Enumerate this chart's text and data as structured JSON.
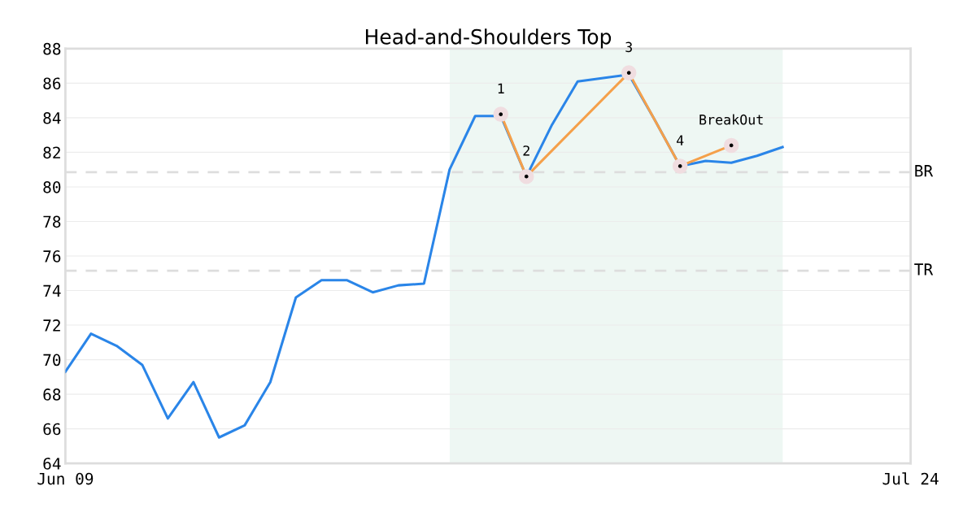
{
  "chart_data": {
    "type": "line",
    "title": "Head-and-Shoulders Top",
    "categories": [
      "Jun 09",
      null,
      null,
      null,
      null,
      null,
      null,
      null,
      null,
      null,
      null,
      null,
      null,
      null,
      null,
      null,
      null,
      null,
      null,
      null,
      null,
      null,
      null,
      null,
      null,
      null,
      null,
      null,
      null,
      null,
      null,
      null,
      null,
      "Jul 24"
    ],
    "series": [
      {
        "color": "#2a85e8",
        "values": [
          69.3,
          71.5,
          70.8,
          69.7,
          66.6,
          68.7,
          65.5,
          66.2,
          68.7,
          73.6,
          74.6,
          74.6,
          73.9,
          74.3,
          74.4,
          81.0,
          84.1,
          84.1,
          80.6,
          83.6,
          86.1,
          86.3,
          86.5,
          83.9,
          81.2,
          81.5,
          81.4,
          81.8,
          82.3,
          null,
          null,
          null,
          null,
          null
        ]
      },
      {
        "color": "#f5a04a",
        "marker": "circle",
        "values": [
          null,
          null,
          null,
          null,
          null,
          null,
          null,
          null,
          null,
          null,
          null,
          null,
          null,
          null,
          null,
          null,
          null,
          84.2,
          80.6,
          null,
          null,
          null,
          86.6,
          null,
          81.2,
          null,
          82.4,
          null,
          null,
          null,
          null,
          null,
          null,
          null
        ]
      }
    ],
    "annotations": [
      "1",
      "2",
      "3",
      "4",
      "BreakOut"
    ],
    "ylim": [
      64,
      88
    ],
    "yticks": [
      64,
      66,
      68,
      70,
      72,
      74,
      76,
      78,
      80,
      82,
      84,
      86,
      88
    ],
    "grid": "y",
    "ref_lines": [
      {
        "axis": "y",
        "value": 80.85,
        "label": "BR",
        "color": "#dddddd",
        "line_style": "dashed"
      },
      {
        "axis": "y",
        "value": 75.15,
        "label": "TR",
        "color": "#dddddd",
        "line_style": "dashed"
      }
    ]
  }
}
